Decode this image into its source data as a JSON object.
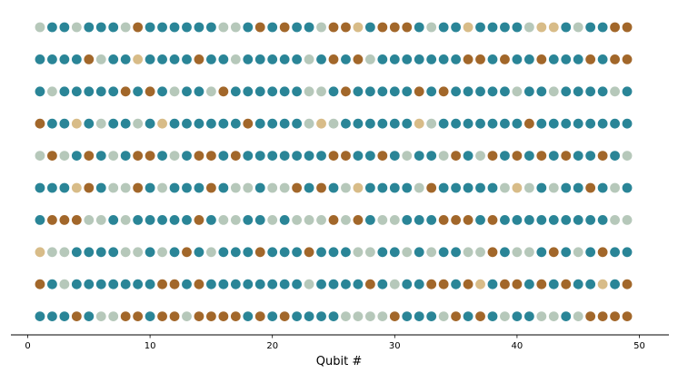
{
  "chart_data": {
    "type": "scatter",
    "title": "",
    "xlabel": "Qubit #",
    "ylabel": "",
    "xlim": [
      0,
      52
    ],
    "x_ticks": [
      0,
      10,
      20,
      30,
      40,
      50
    ],
    "x_tick_labels": [
      "0",
      "10",
      "20",
      "30",
      "40",
      "50"
    ],
    "y_ticks": [],
    "grid": false,
    "legend": "none",
    "state_colors": {
      "T": "#2a8597",
      "B": "#a2672a",
      "G": "#b6c8ba",
      "S": "#d8bc88"
    },
    "rows": [
      "GTTGTTTGBTTTTTTGGTBTBTTGBBSTBBBTGTTSTTTTGSSTGTTBB",
      "TTTTBGTTSTTTTBTTGTTTTTGTBTBGTTTTTTTBBTBTTBTTTBTBB",
      "TGTTTTTBTBTGTTGBTTTTTTGGTBTTTTTBTBTTTTTGTTGTTTTGT",
      "BTTSTGTTGTSTTTTTTBTTTTGSGTTTTTTSGTTTTTTTBTTTTTTTT",
      "GBGTBTGTBBTGTBBTBTTTTTTTBBTTBTGTTGBTGBTBTBTBTTBTG",
      "TTTSBTGGBTGTTTBTGGTGGBTBTGSTTTTGBTTTTTGSGTGTTBTGT",
      "TBBBGGTGTTTTTBTGGTTGTGGGBGBTGGTTTBBBTBTTTTTTTTTGG",
      "SGGTTTTGGTGTBTGTTTBTTTBTTTGGTTGTGTTGGBTGGTBTGTBTT",
      "BTGTTTTTTTBBTBTTTTTTTTGTTTTBTGTTBBTBSTBBTBTBTTSTB",
      "TTTBTGGBBTBBGBBBBTBTBTTTTGGGGBTTTGBTBTGTTGGTGBBBB"
    ]
  }
}
